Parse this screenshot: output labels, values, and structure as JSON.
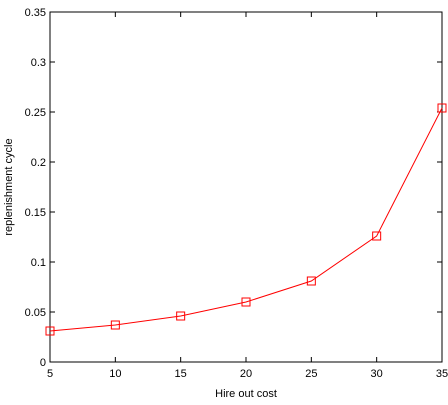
{
  "chart_data": {
    "type": "line",
    "title": "",
    "xlabel": "Hire out cost",
    "ylabel": "replenishment cycle",
    "xlim": [
      5,
      35
    ],
    "ylim": [
      0,
      0.35
    ],
    "x_ticks": [
      "5",
      "10",
      "15",
      "20",
      "25",
      "30",
      "35"
    ],
    "y_ticks": [
      "0",
      "0.05",
      "0.1",
      "0.15",
      "0.2",
      "0.25",
      "0.3",
      "0.35"
    ],
    "grid": false,
    "series": [
      {
        "marker": "square",
        "color": "#ff0000",
        "x": [
          5,
          10,
          15,
          20,
          25,
          30,
          35
        ],
        "y": [
          0.031,
          0.037,
          0.046,
          0.06,
          0.081,
          0.126,
          0.254
        ]
      }
    ]
  }
}
